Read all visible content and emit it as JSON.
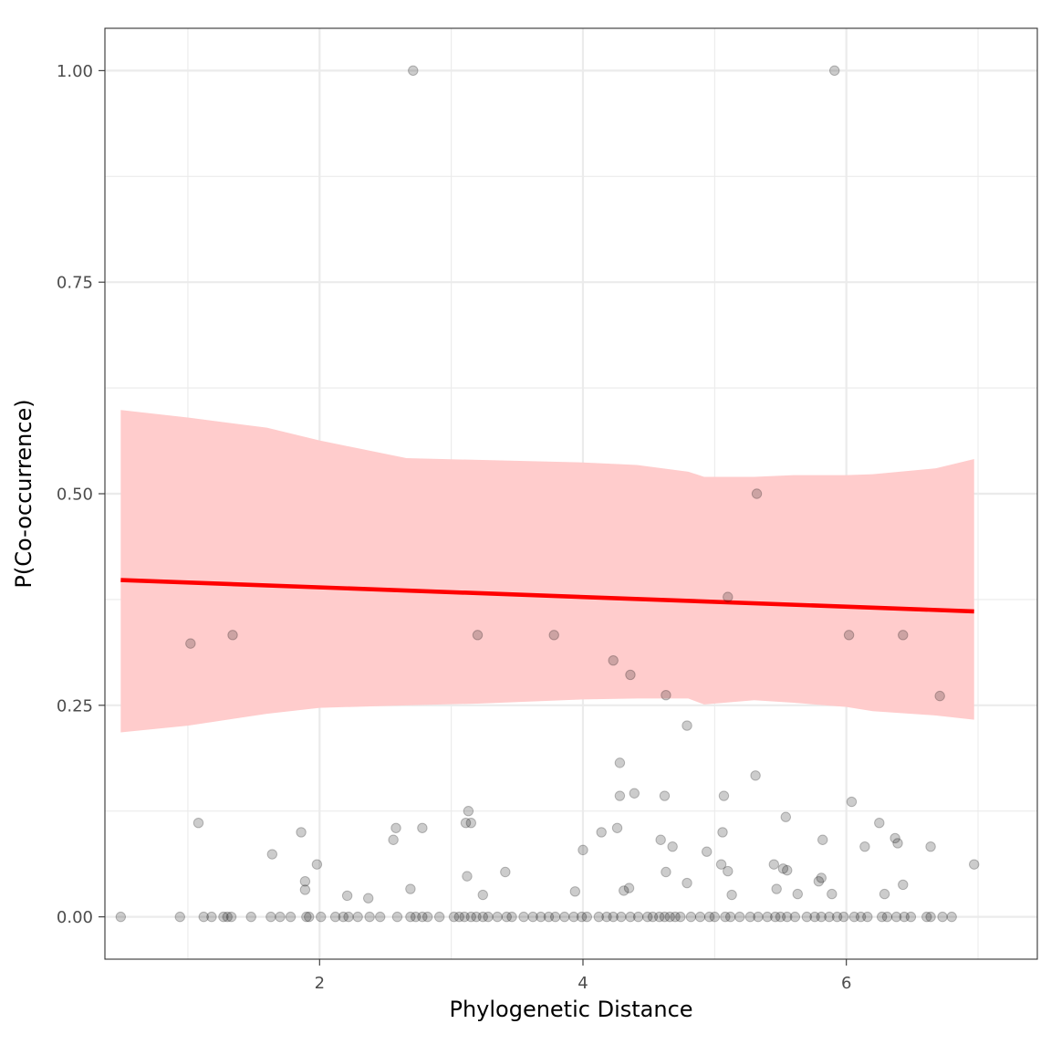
{
  "chart_data": {
    "type": "scatter",
    "title": "",
    "xlabel": "Phylogenetic Distance",
    "ylabel": "P(Co-occurrence)",
    "xlim": [
      0.37,
      7.45
    ],
    "ylim": [
      -0.05,
      1.05
    ],
    "x_ticks": [
      2,
      4,
      6
    ],
    "x_tick_labels": [
      "2",
      "4",
      "6"
    ],
    "y_ticks": [
      0,
      0.25,
      0.5,
      0.75,
      1.0
    ],
    "y_tick_labels": [
      "0.00",
      "0.25",
      "0.50",
      "0.75",
      "1.00"
    ],
    "grid": true,
    "legend": "none",
    "colors": {
      "points": "#000000",
      "trend_line": "#ff0000",
      "confidence_band": "#ffcccc",
      "grid": "#ebebeb",
      "panel_border": "#333333"
    },
    "points": [
      {
        "x": 2.71,
        "y": 1.0
      },
      {
        "x": 5.91,
        "y": 1.0
      },
      {
        "x": 5.32,
        "y": 0.5
      },
      {
        "x": 5.1,
        "y": 0.378
      },
      {
        "x": 1.02,
        "y": 0.323
      },
      {
        "x": 1.34,
        "y": 0.333
      },
      {
        "x": 3.2,
        "y": 0.333
      },
      {
        "x": 3.78,
        "y": 0.333
      },
      {
        "x": 6.02,
        "y": 0.333
      },
      {
        "x": 6.43,
        "y": 0.333
      },
      {
        "x": 4.23,
        "y": 0.303
      },
      {
        "x": 4.36,
        "y": 0.286
      },
      {
        "x": 4.63,
        "y": 0.262
      },
      {
        "x": 6.71,
        "y": 0.261
      },
      {
        "x": 4.79,
        "y": 0.226
      },
      {
        "x": 4.28,
        "y": 0.182
      },
      {
        "x": 5.31,
        "y": 0.167
      },
      {
        "x": 4.28,
        "y": 0.143
      },
      {
        "x": 4.39,
        "y": 0.146
      },
      {
        "x": 4.62,
        "y": 0.143
      },
      {
        "x": 5.07,
        "y": 0.143
      },
      {
        "x": 6.04,
        "y": 0.136
      },
      {
        "x": 3.13,
        "y": 0.125
      },
      {
        "x": 5.54,
        "y": 0.118
      },
      {
        "x": 1.08,
        "y": 0.111
      },
      {
        "x": 3.11,
        "y": 0.111
      },
      {
        "x": 3.15,
        "y": 0.111
      },
      {
        "x": 6.25,
        "y": 0.111
      },
      {
        "x": 2.58,
        "y": 0.105
      },
      {
        "x": 2.78,
        "y": 0.105
      },
      {
        "x": 4.26,
        "y": 0.105
      },
      {
        "x": 1.86,
        "y": 0.1
      },
      {
        "x": 4.14,
        "y": 0.1
      },
      {
        "x": 5.06,
        "y": 0.1
      },
      {
        "x": 2.56,
        "y": 0.091
      },
      {
        "x": 4.59,
        "y": 0.091
      },
      {
        "x": 5.82,
        "y": 0.091
      },
      {
        "x": 6.37,
        "y": 0.093
      },
      {
        "x": 6.39,
        "y": 0.087
      },
      {
        "x": 4.68,
        "y": 0.083
      },
      {
        "x": 6.14,
        "y": 0.083
      },
      {
        "x": 6.64,
        "y": 0.083
      },
      {
        "x": 4.0,
        "y": 0.079
      },
      {
        "x": 4.94,
        "y": 0.077
      },
      {
        "x": 1.64,
        "y": 0.074
      },
      {
        "x": 1.98,
        "y": 0.062
      },
      {
        "x": 5.05,
        "y": 0.062
      },
      {
        "x": 5.45,
        "y": 0.062
      },
      {
        "x": 6.97,
        "y": 0.062
      },
      {
        "x": 5.52,
        "y": 0.057
      },
      {
        "x": 5.55,
        "y": 0.055
      },
      {
        "x": 5.1,
        "y": 0.054
      },
      {
        "x": 3.41,
        "y": 0.053
      },
      {
        "x": 4.63,
        "y": 0.053
      },
      {
        "x": 3.12,
        "y": 0.048
      },
      {
        "x": 5.81,
        "y": 0.046
      },
      {
        "x": 5.79,
        "y": 0.042
      },
      {
        "x": 1.89,
        "y": 0.042
      },
      {
        "x": 4.79,
        "y": 0.04
      },
      {
        "x": 6.43,
        "y": 0.038
      },
      {
        "x": 4.35,
        "y": 0.034
      },
      {
        "x": 5.47,
        "y": 0.033
      },
      {
        "x": 2.69,
        "y": 0.033
      },
      {
        "x": 1.89,
        "y": 0.032
      },
      {
        "x": 4.31,
        "y": 0.031
      },
      {
        "x": 3.94,
        "y": 0.03
      },
      {
        "x": 5.89,
        "y": 0.027
      },
      {
        "x": 5.63,
        "y": 0.027
      },
      {
        "x": 6.29,
        "y": 0.027
      },
      {
        "x": 3.24,
        "y": 0.026
      },
      {
        "x": 5.13,
        "y": 0.026
      },
      {
        "x": 2.21,
        "y": 0.025
      },
      {
        "x": 2.37,
        "y": 0.022
      },
      {
        "x": 0.49,
        "y": 0.0
      },
      {
        "x": 0.94,
        "y": 0.0
      },
      {
        "x": 1.12,
        "y": 0.0
      },
      {
        "x": 1.18,
        "y": 0.0
      },
      {
        "x": 1.27,
        "y": 0.0
      },
      {
        "x": 1.3,
        "y": 0.0
      },
      {
        "x": 1.33,
        "y": 0.0
      },
      {
        "x": 1.48,
        "y": 0.0
      },
      {
        "x": 1.63,
        "y": 0.0
      },
      {
        "x": 1.7,
        "y": 0.0
      },
      {
        "x": 1.78,
        "y": 0.0
      },
      {
        "x": 1.9,
        "y": 0.0
      },
      {
        "x": 1.92,
        "y": 0.0
      },
      {
        "x": 2.01,
        "y": 0.0
      },
      {
        "x": 2.12,
        "y": 0.0
      },
      {
        "x": 2.18,
        "y": 0.0
      },
      {
        "x": 2.22,
        "y": 0.0
      },
      {
        "x": 2.29,
        "y": 0.0
      },
      {
        "x": 2.38,
        "y": 0.0
      },
      {
        "x": 2.46,
        "y": 0.0
      },
      {
        "x": 2.59,
        "y": 0.0
      },
      {
        "x": 2.69,
        "y": 0.0
      },
      {
        "x": 2.73,
        "y": 0.0
      },
      {
        "x": 2.78,
        "y": 0.0
      },
      {
        "x": 2.82,
        "y": 0.0
      },
      {
        "x": 2.91,
        "y": 0.0
      },
      {
        "x": 3.02,
        "y": 0.0
      },
      {
        "x": 3.06,
        "y": 0.0
      },
      {
        "x": 3.1,
        "y": 0.0
      },
      {
        "x": 3.15,
        "y": 0.0
      },
      {
        "x": 3.19,
        "y": 0.0
      },
      {
        "x": 3.24,
        "y": 0.0
      },
      {
        "x": 3.28,
        "y": 0.0
      },
      {
        "x": 3.35,
        "y": 0.0
      },
      {
        "x": 3.42,
        "y": 0.0
      },
      {
        "x": 3.46,
        "y": 0.0
      },
      {
        "x": 3.55,
        "y": 0.0
      },
      {
        "x": 3.62,
        "y": 0.0
      },
      {
        "x": 3.68,
        "y": 0.0
      },
      {
        "x": 3.74,
        "y": 0.0
      },
      {
        "x": 3.79,
        "y": 0.0
      },
      {
        "x": 3.86,
        "y": 0.0
      },
      {
        "x": 3.93,
        "y": 0.0
      },
      {
        "x": 3.99,
        "y": 0.0
      },
      {
        "x": 4.03,
        "y": 0.0
      },
      {
        "x": 4.12,
        "y": 0.0
      },
      {
        "x": 4.18,
        "y": 0.0
      },
      {
        "x": 4.23,
        "y": 0.0
      },
      {
        "x": 4.29,
        "y": 0.0
      },
      {
        "x": 4.36,
        "y": 0.0
      },
      {
        "x": 4.42,
        "y": 0.0
      },
      {
        "x": 4.49,
        "y": 0.0
      },
      {
        "x": 4.53,
        "y": 0.0
      },
      {
        "x": 4.58,
        "y": 0.0
      },
      {
        "x": 4.62,
        "y": 0.0
      },
      {
        "x": 4.66,
        "y": 0.0
      },
      {
        "x": 4.7,
        "y": 0.0
      },
      {
        "x": 4.74,
        "y": 0.0
      },
      {
        "x": 4.82,
        "y": 0.0
      },
      {
        "x": 4.89,
        "y": 0.0
      },
      {
        "x": 4.96,
        "y": 0.0
      },
      {
        "x": 5.0,
        "y": 0.0
      },
      {
        "x": 5.08,
        "y": 0.0
      },
      {
        "x": 5.12,
        "y": 0.0
      },
      {
        "x": 5.19,
        "y": 0.0
      },
      {
        "x": 5.27,
        "y": 0.0
      },
      {
        "x": 5.33,
        "y": 0.0
      },
      {
        "x": 5.4,
        "y": 0.0
      },
      {
        "x": 5.46,
        "y": 0.0
      },
      {
        "x": 5.5,
        "y": 0.0
      },
      {
        "x": 5.55,
        "y": 0.0
      },
      {
        "x": 5.61,
        "y": 0.0
      },
      {
        "x": 5.7,
        "y": 0.0
      },
      {
        "x": 5.76,
        "y": 0.0
      },
      {
        "x": 5.81,
        "y": 0.0
      },
      {
        "x": 5.87,
        "y": 0.0
      },
      {
        "x": 5.93,
        "y": 0.0
      },
      {
        "x": 5.98,
        "y": 0.0
      },
      {
        "x": 6.06,
        "y": 0.0
      },
      {
        "x": 6.11,
        "y": 0.0
      },
      {
        "x": 6.16,
        "y": 0.0
      },
      {
        "x": 6.27,
        "y": 0.0
      },
      {
        "x": 6.31,
        "y": 0.0
      },
      {
        "x": 6.38,
        "y": 0.0
      },
      {
        "x": 6.44,
        "y": 0.0
      },
      {
        "x": 6.49,
        "y": 0.0
      },
      {
        "x": 6.61,
        "y": 0.0
      },
      {
        "x": 6.64,
        "y": 0.0
      },
      {
        "x": 6.73,
        "y": 0.0
      },
      {
        "x": 6.8,
        "y": 0.0
      }
    ],
    "trend_line": {
      "x": [
        0.49,
        6.97
      ],
      "y": [
        0.398,
        0.361
      ]
    },
    "confidence_band": {
      "x": [
        0.49,
        1.0,
        1.6,
        2.0,
        2.66,
        3.2,
        4.0,
        4.41,
        4.8,
        4.92,
        5.3,
        5.6,
        6.0,
        6.2,
        6.68,
        6.97
      ],
      "upper": [
        0.599,
        0.59,
        0.578,
        0.563,
        0.542,
        0.54,
        0.537,
        0.534,
        0.526,
        0.52,
        0.52,
        0.522,
        0.522,
        0.523,
        0.53,
        0.541
      ],
      "lower": [
        0.218,
        0.226,
        0.24,
        0.247,
        0.25,
        0.252,
        0.257,
        0.258,
        0.258,
        0.251,
        0.256,
        0.253,
        0.248,
        0.243,
        0.238,
        0.233
      ]
    }
  }
}
